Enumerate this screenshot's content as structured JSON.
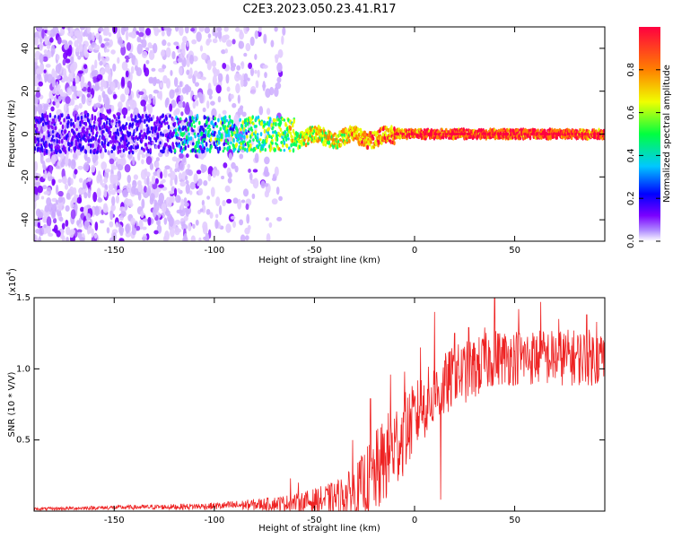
{
  "chart_data": [
    {
      "type": "heatmap",
      "title": "C2E3.2023.050.23.41.R17",
      "xlabel": "Height of straight line (km)",
      "ylabel": "Frequency (Hz)",
      "xlim": [
        -190,
        95
      ],
      "ylim": [
        -50,
        50
      ],
      "xticks": [
        -150,
        -100,
        -50,
        0,
        50
      ],
      "yticks": [
        -40,
        -20,
        0,
        20,
        40
      ],
      "signal_frequency_hz": 0,
      "noise_extent_km": [
        -190,
        -75
      ],
      "signal_onset_km": -65,
      "colorbar": {
        "label": "Normalized spectral amplitude",
        "range": [
          0.0,
          1.0
        ],
        "ticks": [
          "0.0",
          "0.2",
          "0.4",
          "0.6",
          "0.8"
        ],
        "colormap": [
          "#ffffff",
          "#7a00ff",
          "#0000ff",
          "#00c8ff",
          "#00ff40",
          "#f0ff00",
          "#ff8000",
          "#ff0040"
        ]
      }
    },
    {
      "type": "line",
      "xlabel": "Height of straight line (km)",
      "ylabel": "SNR (10 * V/V)",
      "exponent_label": "(x10",
      "exponent_power": "4",
      "exponent_close": ")",
      "xlim": [
        -190,
        95
      ],
      "ylim": [
        0,
        15000
      ],
      "xticks": [
        -150,
        -100,
        -50,
        0,
        50
      ],
      "yticks": [
        5000,
        10000,
        15000
      ],
      "ytick_labels": [
        "0.5",
        "1.0",
        "1.5"
      ],
      "color": "#ee2222",
      "envelope": {
        "x": [
          -190,
          -150,
          -120,
          -100,
          -80,
          -60,
          -50,
          -40,
          -30,
          -20,
          -10,
          0,
          5,
          10,
          20,
          30,
          40,
          50,
          60,
          70,
          80,
          95
        ],
        "base": [
          150,
          250,
          300,
          350,
          450,
          600,
          700,
          900,
          1300,
          2500,
          4500,
          6500,
          7500,
          8000,
          9500,
          10000,
          10800,
          10800,
          10800,
          10800,
          10800,
          10800
        ],
        "amp": [
          100,
          150,
          200,
          250,
          400,
          600,
          900,
          1200,
          1800,
          3000,
          3200,
          2500,
          2500,
          2500,
          2200,
          2200,
          2000,
          2000,
          2000,
          2000,
          2000,
          2000
        ]
      },
      "spikes": [
        {
          "x": -62,
          "y": 2300
        },
        {
          "x": -58,
          "y": 2000
        },
        {
          "x": -31,
          "y": 5000
        },
        {
          "x": -22,
          "y": 7900
        },
        {
          "x": -12,
          "y": 9600
        },
        {
          "x": -5,
          "y": 9800
        },
        {
          "x": 3,
          "y": 11500
        },
        {
          "x": 10,
          "y": 14000
        },
        {
          "x": 13,
          "y": 800
        },
        {
          "x": 20,
          "y": 12500
        },
        {
          "x": 27,
          "y": 12900
        },
        {
          "x": 35,
          "y": 12900
        },
        {
          "x": 40,
          "y": 15000
        },
        {
          "x": 52,
          "y": 14200
        },
        {
          "x": 63,
          "y": 14700
        },
        {
          "x": 72,
          "y": 13500
        },
        {
          "x": 86,
          "y": 13800
        },
        {
          "x": 91,
          "y": 13300
        }
      ]
    }
  ]
}
